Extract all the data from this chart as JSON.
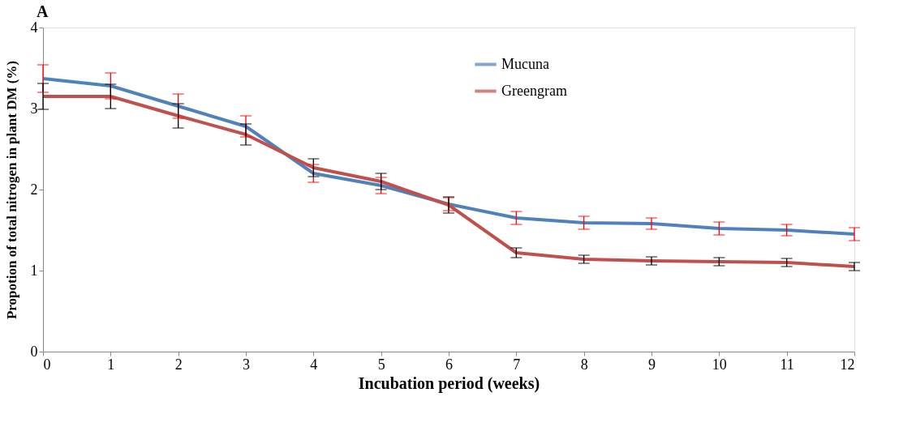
{
  "chart_data": {
    "type": "line",
    "title": "A",
    "xlabel": "Incubation period (weeks)",
    "ylabel": "Propotion of total nitrogen in plant DM (%)",
    "x": [
      0,
      1,
      2,
      3,
      4,
      5,
      6,
      7,
      8,
      9,
      10,
      11,
      12
    ],
    "series": [
      {
        "name": "Mucuna",
        "color": "#4f81bd",
        "values": [
          3.37,
          3.28,
          3.03,
          2.78,
          2.2,
          2.05,
          1.82,
          1.65,
          1.59,
          1.58,
          1.52,
          1.5,
          1.45
        ],
        "errors": [
          0.17,
          0.16,
          0.15,
          0.13,
          0.11,
          0.1,
          0.08,
          0.08,
          0.08,
          0.07,
          0.08,
          0.07,
          0.08
        ]
      },
      {
        "name": "Greengram",
        "color": "#c0504d",
        "values": [
          3.15,
          3.15,
          2.91,
          2.68,
          2.27,
          2.1,
          1.81,
          1.22,
          1.14,
          1.12,
          1.11,
          1.1,
          1.05
        ],
        "errors": [
          0.16,
          0.15,
          0.15,
          0.13,
          0.11,
          0.1,
          0.1,
          0.06,
          0.05,
          0.05,
          0.05,
          0.05,
          0.05
        ]
      }
    ],
    "xlim": [
      0,
      12
    ],
    "xticks": [
      0,
      1,
      2,
      3,
      4,
      5,
      6,
      7,
      8,
      9,
      10,
      11,
      12
    ],
    "ylim": [
      0,
      4
    ],
    "yticks": [
      0,
      1,
      2,
      3,
      4
    ],
    "grid": false,
    "legend": "top right",
    "marker": "none",
    "line_style": "solid"
  }
}
